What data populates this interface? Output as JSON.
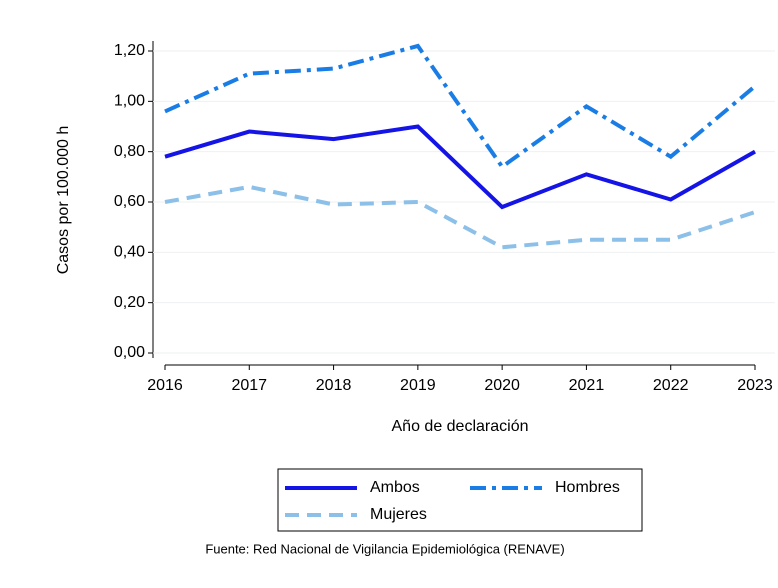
{
  "chart_data": {
    "type": "line",
    "x": [
      2016,
      2017,
      2018,
      2019,
      2020,
      2021,
      2022,
      2023
    ],
    "xlim": [
      2016,
      2023
    ],
    "xticks": [
      2016,
      2017,
      2018,
      2019,
      2020,
      2021,
      2022,
      2023
    ],
    "ylim": [
      0,
      1.2
    ],
    "yticks": [
      {
        "value": 0,
        "label": "0,00"
      },
      {
        "value": 0.2,
        "label": "0,20"
      },
      {
        "value": 0.4,
        "label": "0,40"
      },
      {
        "value": 0.6,
        "label": "0,60"
      },
      {
        "value": 0.8,
        "label": "0,80"
      },
      {
        "value": 1.0,
        "label": "1,00"
      },
      {
        "value": 1.2,
        "label": "1,20"
      }
    ],
    "grid": true,
    "x_label": "Año de declaración",
    "y_label": "Casos por 100.000 h",
    "source": "Fuente: Red Nacional de Vigilancia Epidemiológica (RENAVE)",
    "legend_position": "bottom",
    "series": [
      {
        "name": "Ambos",
        "color": "#1414e6",
        "dash": "solid",
        "values": [
          0.78,
          0.88,
          0.85,
          0.9,
          0.58,
          0.71,
          0.61,
          0.8
        ]
      },
      {
        "name": "Hombres",
        "color": "#1a7de6",
        "dash": "dashdot",
        "values": [
          0.96,
          1.11,
          1.13,
          1.22,
          0.74,
          0.98,
          0.78,
          1.06
        ]
      },
      {
        "name": "Mujeres",
        "color": "#8cc0e8",
        "dash": "dash",
        "values": [
          0.6,
          0.66,
          0.59,
          0.6,
          0.42,
          0.45,
          0.45,
          0.56
        ]
      }
    ]
  }
}
